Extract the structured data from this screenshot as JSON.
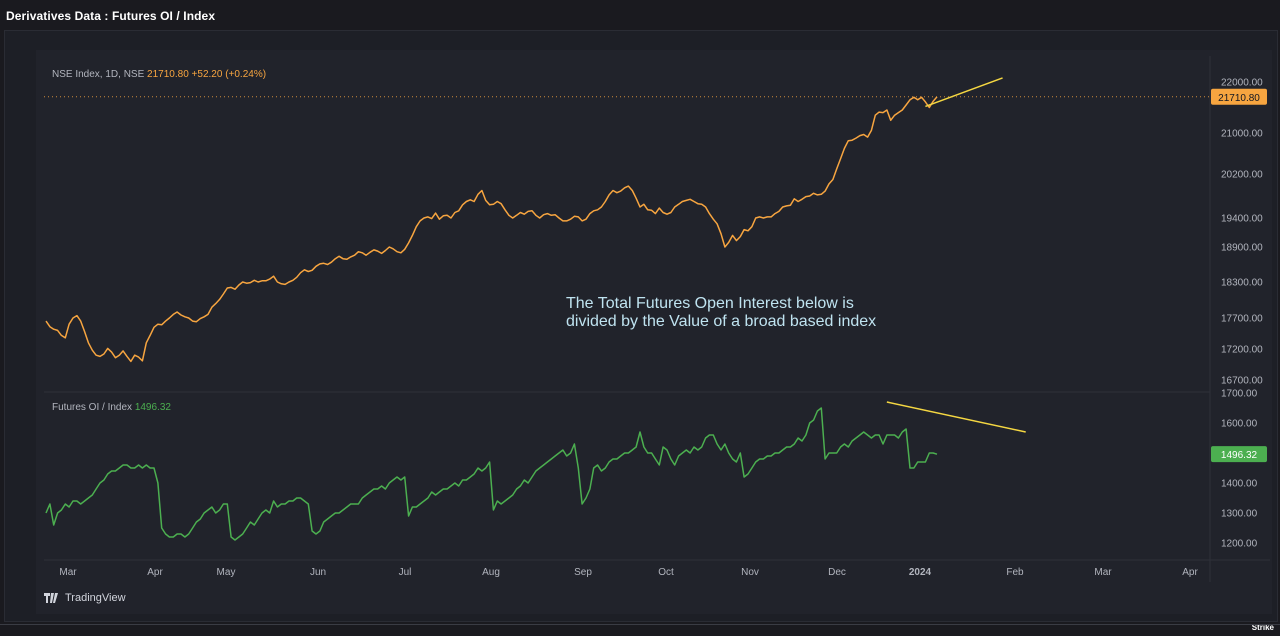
{
  "app_title": "Derivatives Data : Futures OI / Index",
  "brand": "TradingView",
  "footer_brand": "Strike",
  "annotation": [
    "The Total Futures Open Interest below is",
    "divided by the Value of a broad based index"
  ],
  "colors": {
    "index_line": "#f7a540",
    "oi_line": "#4caf50",
    "trendline": "#f5d742",
    "annotation": "#bfe3f0"
  },
  "chart_data": [
    {
      "type": "line",
      "legend": {
        "name": "NSE Index, 1D, NSE",
        "last": "21710.80",
        "change": "+52.20 (+0.24%)"
      },
      "y_ticks": [
        "22000.00",
        "21000.00",
        "20200.00",
        "19400.00",
        "18900.00",
        "18300.00",
        "17700.00",
        "17200.00",
        "16700.00"
      ],
      "last_value_label": "21710.80",
      "series": [
        {
          "name": "NSE Index",
          "values": [
            17650,
            17560,
            17520,
            17500,
            17420,
            17380,
            17600,
            17700,
            17740,
            17650,
            17480,
            17300,
            17180,
            17100,
            17080,
            17120,
            17210,
            17150,
            17060,
            17100,
            17170,
            17080,
            17000,
            17100,
            17070,
            17010,
            17300,
            17420,
            17550,
            17600,
            17590,
            17650,
            17700,
            17760,
            17800,
            17750,
            17720,
            17700,
            17650,
            17640,
            17690,
            17720,
            17760,
            17880,
            17940,
            18010,
            18100,
            18200,
            18210,
            18180,
            18250,
            18300,
            18280,
            18290,
            18330,
            18300,
            18320,
            18320,
            18350,
            18400,
            18300,
            18270,
            18260,
            18300,
            18330,
            18380,
            18460,
            18510,
            18480,
            18500,
            18570,
            18610,
            18620,
            18600,
            18640,
            18700,
            18740,
            18700,
            18690,
            18730,
            18760,
            18820,
            18800,
            18760,
            18810,
            18850,
            18830,
            18790,
            18840,
            18900,
            18870,
            18820,
            18800,
            18860,
            18970,
            19100,
            19250,
            19350,
            19400,
            19420,
            19390,
            19490,
            19380,
            19440,
            19450,
            19400,
            19500,
            19530,
            19640,
            19700,
            19730,
            19700,
            19830,
            19900,
            19720,
            19640,
            19650,
            19700,
            19660,
            19550,
            19450,
            19400,
            19450,
            19500,
            19470,
            19520,
            19530,
            19450,
            19400,
            19460,
            19480,
            19450,
            19460,
            19400,
            19350,
            19350,
            19380,
            19430,
            19420,
            19350,
            19380,
            19480,
            19530,
            19550,
            19600,
            19700,
            19820,
            19900,
            19860,
            19890,
            19950,
            19980,
            19900,
            19760,
            19600,
            19650,
            19550,
            19540,
            19480,
            19580,
            19500,
            19470,
            19500,
            19600,
            19650,
            19700,
            19720,
            19740,
            19700,
            19660,
            19650,
            19600,
            19480,
            19380,
            19300,
            19130,
            18900,
            18980,
            19100,
            19010,
            19080,
            19200,
            19180,
            19250,
            19400,
            19420,
            19400,
            19420,
            19420,
            19480,
            19520,
            19600,
            19620,
            19630,
            19750,
            19700,
            19740,
            19790,
            19800,
            19850,
            19820,
            19830,
            19890,
            20020,
            20100,
            20300,
            20500,
            20700,
            20850,
            20860,
            20900,
            20950,
            20970,
            20920,
            21050,
            21350,
            21410,
            21400,
            21450,
            21250,
            21350,
            21400,
            21450,
            21550,
            21650,
            21700,
            21650,
            21700,
            21610,
            21500,
            21620,
            21710
          ]
        }
      ],
      "trendline": {
        "from": {
          "i": 228,
          "y": 21520
        },
        "to": {
          "i": 248,
          "y": 22080
        }
      }
    },
    {
      "type": "line",
      "legend": {
        "name": "Futures OI / Index",
        "last": "1496.32"
      },
      "y_ticks": [
        "1700.00",
        "1600.00",
        "1400.00",
        "1300.00",
        "1200.00"
      ],
      "last_value_label": "1496.32",
      "x_ticks": [
        "Mar",
        "Apr",
        "May",
        "Jun",
        "Jul",
        "Aug",
        "Sep",
        "Oct",
        "Nov",
        "Dec",
        "2024",
        "Feb",
        "Mar",
        "Apr"
      ],
      "series": [
        {
          "name": "Futures OI / Index",
          "values": [
            1300,
            1330,
            1260,
            1300,
            1310,
            1330,
            1320,
            1340,
            1340,
            1330,
            1340,
            1350,
            1360,
            1380,
            1400,
            1410,
            1430,
            1440,
            1440,
            1450,
            1460,
            1460,
            1450,
            1450,
            1460,
            1450,
            1460,
            1450,
            1450,
            1400,
            1250,
            1230,
            1220,
            1220,
            1230,
            1230,
            1220,
            1230,
            1250,
            1270,
            1280,
            1300,
            1310,
            1320,
            1300,
            1310,
            1330,
            1330,
            1220,
            1210,
            1220,
            1230,
            1250,
            1270,
            1260,
            1280,
            1300,
            1310,
            1300,
            1340,
            1320,
            1330,
            1330,
            1340,
            1340,
            1350,
            1350,
            1340,
            1330,
            1240,
            1230,
            1240,
            1270,
            1280,
            1290,
            1300,
            1300,
            1310,
            1320,
            1330,
            1330,
            1330,
            1350,
            1360,
            1370,
            1380,
            1380,
            1390,
            1380,
            1400,
            1410,
            1420,
            1410,
            1420,
            1290,
            1320,
            1320,
            1330,
            1340,
            1350,
            1370,
            1360,
            1370,
            1380,
            1380,
            1390,
            1400,
            1390,
            1410,
            1410,
            1420,
            1430,
            1450,
            1440,
            1450,
            1470,
            1310,
            1340,
            1330,
            1340,
            1350,
            1360,
            1380,
            1390,
            1410,
            1400,
            1420,
            1440,
            1450,
            1460,
            1470,
            1480,
            1490,
            1500,
            1510,
            1490,
            1500,
            1530,
            1450,
            1330,
            1350,
            1380,
            1450,
            1460,
            1440,
            1450,
            1470,
            1480,
            1480,
            1490,
            1500,
            1500,
            1510,
            1520,
            1570,
            1520,
            1500,
            1500,
            1480,
            1460,
            1520,
            1510,
            1480,
            1460,
            1490,
            1500,
            1510,
            1500,
            1520,
            1510,
            1520,
            1550,
            1560,
            1560,
            1530,
            1510,
            1530,
            1500,
            1480,
            1470,
            1500,
            1420,
            1430,
            1450,
            1470,
            1480,
            1480,
            1490,
            1490,
            1500,
            1500,
            1510,
            1520,
            1520,
            1530,
            1550,
            1540,
            1560,
            1600,
            1610,
            1640,
            1650,
            1480,
            1500,
            1500,
            1500,
            1520,
            1530,
            1520,
            1540,
            1550,
            1560,
            1570,
            1560,
            1550,
            1560,
            1560,
            1530,
            1560,
            1560,
            1560,
            1550,
            1570,
            1580,
            1450,
            1450,
            1470,
            1470,
            1470,
            1500,
            1500,
            1496
          ]
        }
      ],
      "trendline": {
        "from": {
          "i": 218,
          "y": 1670
        },
        "to": {
          "i": 254,
          "y": 1570
        }
      }
    }
  ]
}
